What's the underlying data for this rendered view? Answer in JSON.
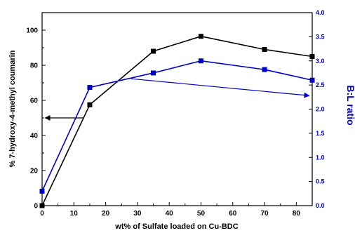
{
  "chart_data": {
    "type": "line",
    "xlabel": "wt% of Sulfate loaded on Cu-BDC",
    "ylabel_left": "% 7-hydroxy-4-methyl coumarin",
    "ylabel_right": "B:L ratio",
    "x_ticks": [
      "0",
      "10",
      "20",
      "30",
      "40",
      "50",
      "60",
      "70",
      "80"
    ],
    "y_left_ticks": [
      "0",
      "20",
      "40",
      "60",
      "80",
      "100"
    ],
    "y_right_ticks": [
      "0.0",
      "0.5",
      "1.0",
      "1.5",
      "2.0",
      "2.5",
      "3.0",
      "3.5",
      "4.0"
    ],
    "xlim": [
      0,
      85
    ],
    "ylim_left": [
      0,
      110
    ],
    "ylim_right": [
      0,
      4.0
    ],
    "grid": false,
    "colors": {
      "left_series": "#000000",
      "right_series": "#0000cc",
      "right_axis": "#0000cc"
    },
    "series": [
      {
        "axis": "left",
        "x": [
          0,
          15,
          35,
          50,
          70,
          85
        ],
        "y": [
          0,
          57.5,
          88,
          96.5,
          89,
          85
        ]
      },
      {
        "axis": "right",
        "x": [
          0,
          15,
          35,
          50,
          70,
          85
        ],
        "y": [
          0.3,
          2.45,
          2.75,
          3.0,
          2.82,
          2.6
        ]
      }
    ],
    "annotations": [
      {
        "type": "arrow",
        "axis": "left",
        "from": [
          13,
          50
        ],
        "to": [
          1,
          50
        ],
        "color": "#000000"
      },
      {
        "type": "arrow",
        "axis": "right",
        "from": [
          28,
          2.63
        ],
        "to": [
          84,
          2.28
        ],
        "color": "#0000cc"
      }
    ]
  }
}
